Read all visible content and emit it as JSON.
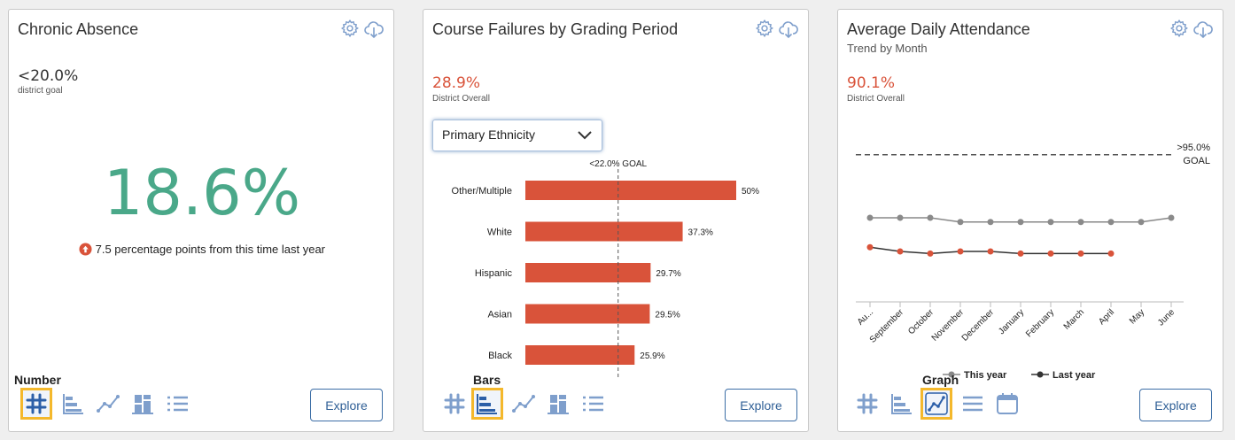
{
  "cards": [
    {
      "title": "Chronic Absence",
      "goal_value": "<20.0%",
      "goal_label": "district goal",
      "main_value": "18.6%",
      "change_text": "7.5 percentage points from this time last year",
      "active_view_label": "Number",
      "explore_label": "Explore"
    },
    {
      "title": "Course Failures by Grading Period",
      "overall_value": "28.9%",
      "overall_label": "District Overall",
      "dropdown_value": "Primary Ethnicity",
      "active_view_label": "Bars",
      "explore_label": "Explore"
    },
    {
      "title": "Average Daily Attendance",
      "subtitle": "Trend by Month",
      "overall_value": "90.1%",
      "overall_label": "District Overall",
      "active_view_label": "Graph",
      "explore_label": "Explore"
    }
  ],
  "colors": {
    "accent_green": "#4aa889",
    "accent_red": "#d9533a",
    "bar_red": "#d9533a",
    "line_gray": "#8a8a8a",
    "icon_blue": "#7f9fcc",
    "active_blue": "#2c5fa8",
    "highlight_yellow": "#f4b82c"
  },
  "icons": [
    "gear-icon",
    "cloud-download-icon",
    "hash-icon",
    "bar-chart-icon",
    "line-chart-icon",
    "column-chart-icon",
    "list-icon",
    "calendar-icon",
    "up-arrow-icon"
  ],
  "chart_data": [
    {
      "type": "bar",
      "categories": [
        "Other/Multiple",
        "White",
        "Hispanic",
        "Asian",
        "Black"
      ],
      "values": [
        50,
        37.3,
        29.7,
        29.5,
        25.9
      ],
      "value_labels": [
        "50%",
        "37.3%",
        "29.7%",
        "29.5%",
        "25.9%"
      ],
      "goal_value": 22.0,
      "goal_label": "<22.0% GOAL",
      "xlim": [
        0,
        50
      ]
    },
    {
      "type": "line",
      "categories": [
        "Au...",
        "September",
        "October",
        "November",
        "December",
        "January",
        "February",
        "March",
        "April",
        "May",
        "June"
      ],
      "series": [
        {
          "name": "This year",
          "values": [
            92.0,
            92.0,
            92.0,
            91.8,
            91.8,
            91.8,
            91.8,
            91.8,
            91.8,
            91.8,
            92.0
          ]
        },
        {
          "name": "Last year",
          "values": [
            90.6,
            90.4,
            90.3,
            90.4,
            90.4,
            90.3,
            90.3,
            90.3,
            90.3,
            null,
            null
          ]
        }
      ],
      "goal_value": 95.0,
      "goal_label_line1": ">95.0%",
      "goal_label_line2": "GOAL",
      "ylim": [
        88.0,
        96.0
      ]
    }
  ]
}
